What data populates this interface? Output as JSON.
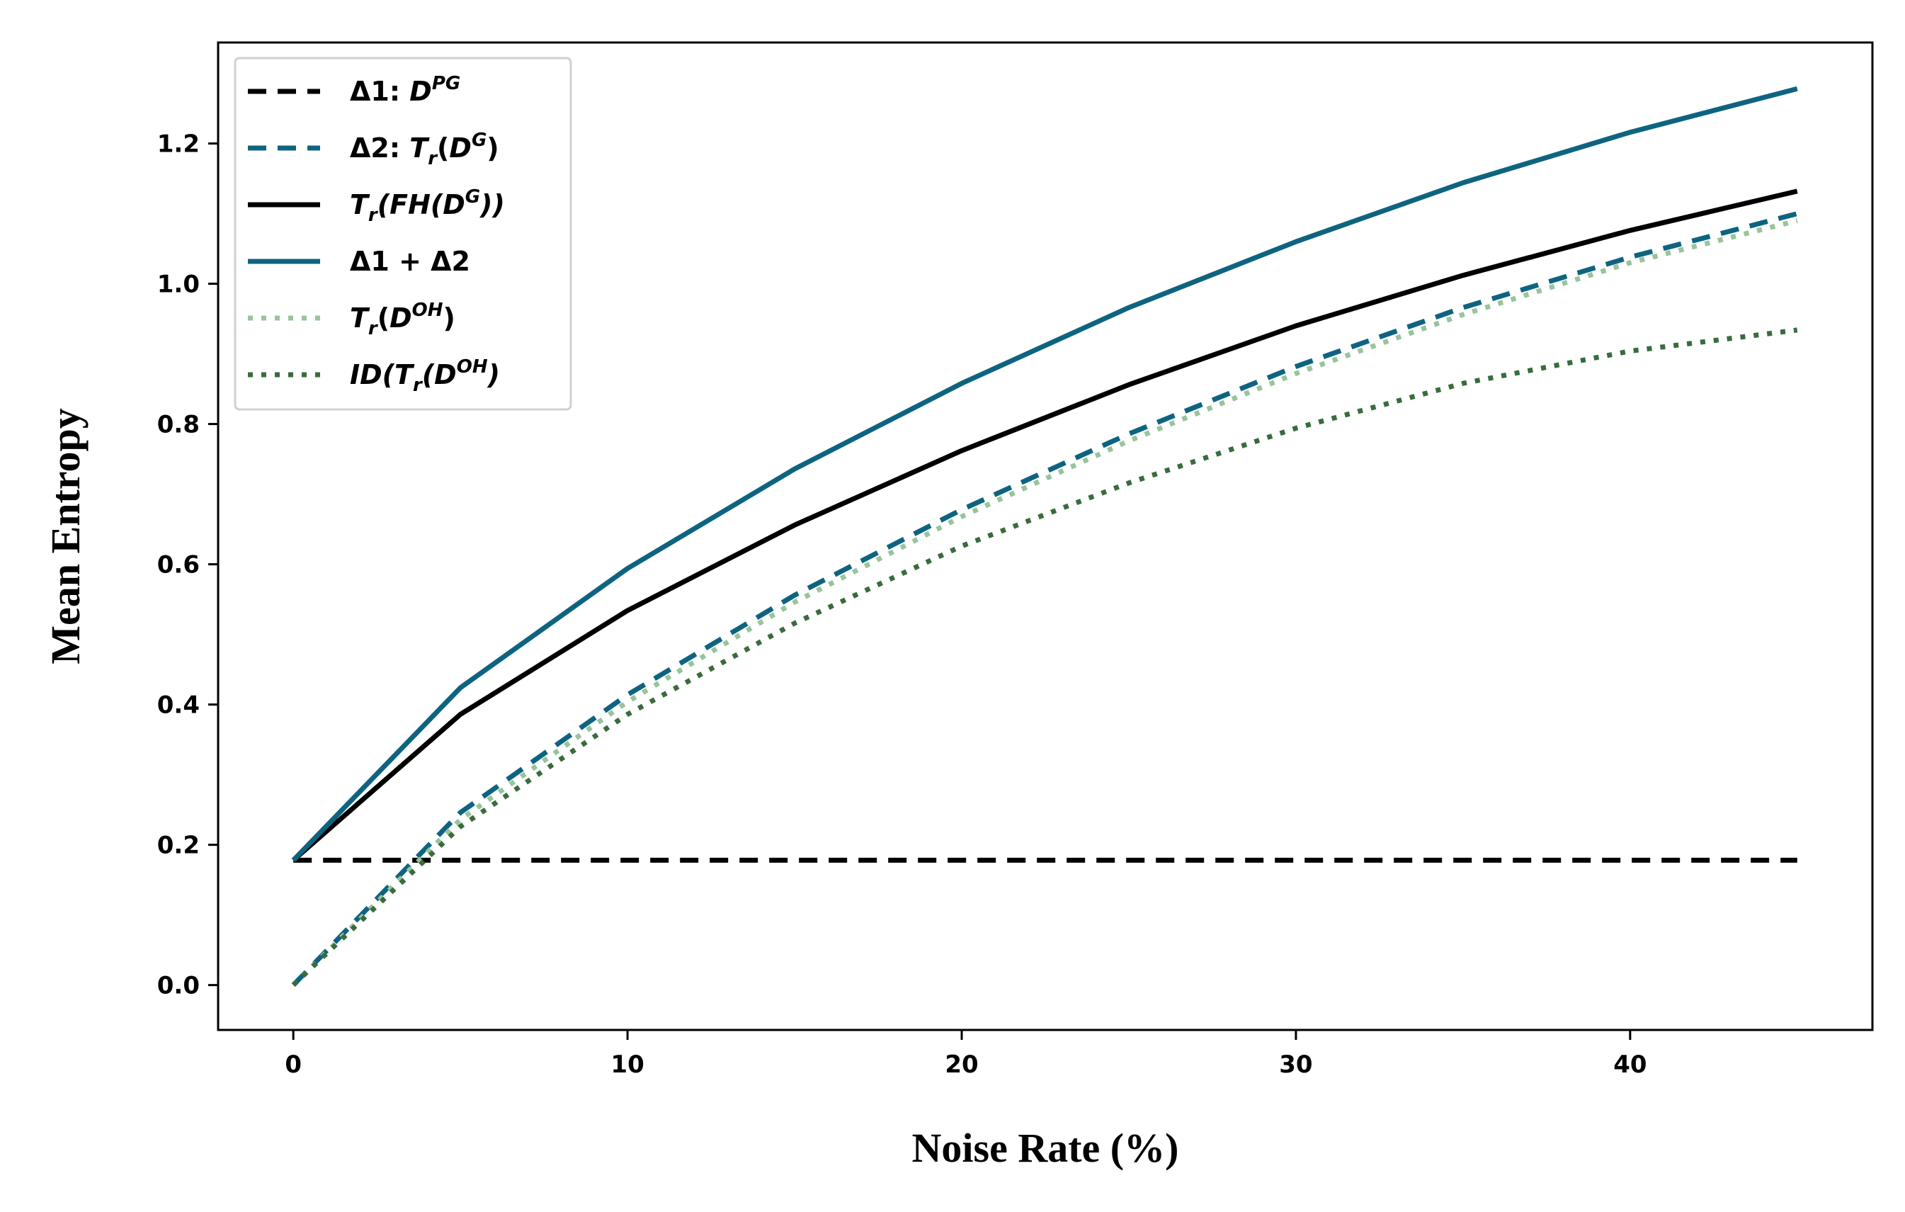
{
  "chart_data": {
    "type": "line",
    "xlabel": "Noise Rate (%)",
    "ylabel": "Mean Entropy",
    "xlim": [
      -2.25,
      47.25
    ],
    "ylim": [
      -0.064,
      1.344
    ],
    "xticks": [
      0,
      10,
      20,
      30,
      40
    ],
    "xtick_labels": [
      "0",
      "10",
      "20",
      "30",
      "40"
    ],
    "yticks": [
      0.0,
      0.2,
      0.4,
      0.6,
      0.8,
      1.0,
      1.2
    ],
    "ytick_labels": [
      "0.0",
      "0.2",
      "0.4",
      "0.6",
      "0.8",
      "1.0",
      "1.2"
    ],
    "grid": false,
    "legend_position": "top-left",
    "x": [
      0,
      5,
      10,
      15,
      20,
      25,
      30,
      35,
      40,
      45
    ],
    "series": [
      {
        "key": "delta1",
        "legend_parts": [
          [
            "Δ1: ",
            ""
          ],
          [
            "D",
            "it"
          ],
          [
            "PG",
            "sup"
          ]
        ],
        "color": "#000000",
        "style": "dashed",
        "values": [
          0.178,
          0.178,
          0.178,
          0.178,
          0.178,
          0.178,
          0.178,
          0.178,
          0.178,
          0.178
        ]
      },
      {
        "key": "delta2",
        "legend_parts": [
          [
            "Δ2: ",
            ""
          ],
          [
            "T",
            "it"
          ],
          [
            "r",
            "sub"
          ],
          [
            "(",
            ""
          ],
          [
            "D",
            "it"
          ],
          [
            "G",
            "sup"
          ],
          [
            ")",
            ""
          ]
        ],
        "color": "#0e6480",
        "style": "dashed",
        "values": [
          0.0,
          0.246,
          0.414,
          0.556,
          0.678,
          0.786,
          0.882,
          0.966,
          1.038,
          1.1
        ]
      },
      {
        "key": "tr_fh",
        "legend_parts": [
          [
            "T",
            "it"
          ],
          [
            "r",
            "sub"
          ],
          [
            "(FH(D",
            "it"
          ],
          [
            "G",
            "sup"
          ],
          [
            "))",
            "it"
          ]
        ],
        "color": "#000000",
        "style": "solid",
        "values": [
          0.178,
          0.386,
          0.534,
          0.656,
          0.762,
          0.856,
          0.94,
          1.012,
          1.076,
          1.132
        ]
      },
      {
        "key": "sum",
        "legend_parts": [
          [
            "Δ1 + Δ2",
            ""
          ]
        ],
        "color": "#0e6480",
        "style": "solid",
        "values": [
          0.178,
          0.424,
          0.594,
          0.736,
          0.858,
          0.966,
          1.06,
          1.144,
          1.216,
          1.278
        ]
      },
      {
        "key": "tr_doh",
        "legend_parts": [
          [
            "T",
            "it"
          ],
          [
            "r",
            "sub"
          ],
          [
            "(",
            ""
          ],
          [
            "D",
            "it"
          ],
          [
            "OH",
            "sup"
          ],
          [
            ")",
            ""
          ]
        ],
        "color": "#98c49c",
        "style": "dotted",
        "values": [
          0.0,
          0.236,
          0.404,
          0.546,
          0.668,
          0.776,
          0.872,
          0.956,
          1.03,
          1.09
        ]
      },
      {
        "key": "id_tr_doh",
        "legend_parts": [
          [
            "ID(T",
            "it"
          ],
          [
            "r",
            "sub"
          ],
          [
            "(D",
            "it"
          ],
          [
            "OH",
            "sup"
          ],
          [
            ")",
            "it"
          ]
        ],
        "color": "#3a6b3c",
        "style": "dotted",
        "values": [
          0.0,
          0.226,
          0.386,
          0.516,
          0.626,
          0.716,
          0.794,
          0.858,
          0.904,
          0.934
        ]
      }
    ]
  }
}
